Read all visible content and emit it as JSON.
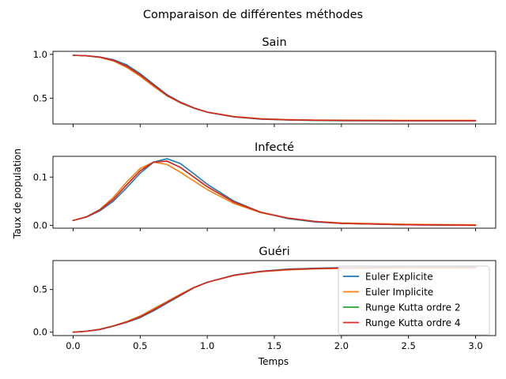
{
  "suptitle": "Comparaison de différentes méthodes",
  "ylabel": "Taux de population",
  "xlabel": "Temps",
  "legend": {
    "placement": "lower-right of bottom panel",
    "entries": [
      "Euler Explicite",
      "Euler Implicite",
      "Runge Kutta ordre 2",
      "Runge Kutta ordre 4"
    ]
  },
  "colors": {
    "Euler Explicite": "#1f77b4",
    "Euler Implicite": "#ff7f0e",
    "Runge Kutta ordre 2": "#2ca02c",
    "Runge Kutta ordre 4": "#d62728"
  },
  "x_ticks": [
    "0.0",
    "0.5",
    "1.0",
    "1.5",
    "2.0",
    "2.5",
    "3.0"
  ],
  "chart_data": [
    {
      "type": "line",
      "title": "Sain",
      "xlim": [
        -0.15,
        3.15
      ],
      "ylim": [
        0.205,
        1.035
      ],
      "yticks": [
        0.5,
        1.0
      ],
      "ytick_labels": [
        "0.5",
        "1.0"
      ],
      "x": [
        0,
        0.1,
        0.2,
        0.3,
        0.4,
        0.5,
        0.6,
        0.7,
        0.8,
        0.9,
        1.0,
        1.2,
        1.4,
        1.6,
        1.8,
        2.0,
        2.5,
        3.0
      ],
      "series": [
        {
          "name": "Euler Explicite",
          "values": [
            0.99,
            0.985,
            0.97,
            0.94,
            0.88,
            0.78,
            0.66,
            0.54,
            0.455,
            0.39,
            0.34,
            0.285,
            0.26,
            0.25,
            0.245,
            0.242,
            0.24,
            0.24
          ]
        },
        {
          "name": "Euler Implicite",
          "values": [
            0.99,
            0.983,
            0.965,
            0.925,
            0.85,
            0.75,
            0.635,
            0.525,
            0.445,
            0.385,
            0.34,
            0.29,
            0.265,
            0.255,
            0.25,
            0.248,
            0.246,
            0.246
          ]
        },
        {
          "name": "Runge Kutta ordre 2",
          "values": [
            0.99,
            0.984,
            0.968,
            0.932,
            0.865,
            0.765,
            0.648,
            0.532,
            0.45,
            0.387,
            0.34,
            0.287,
            0.262,
            0.252,
            0.247,
            0.245,
            0.243,
            0.243
          ]
        },
        {
          "name": "Runge Kutta ordre 4",
          "values": [
            0.99,
            0.984,
            0.968,
            0.932,
            0.865,
            0.765,
            0.648,
            0.532,
            0.45,
            0.387,
            0.34,
            0.287,
            0.262,
            0.252,
            0.247,
            0.245,
            0.243,
            0.243
          ]
        }
      ]
    },
    {
      "type": "line",
      "title": "Infecté",
      "xlim": [
        -0.15,
        3.15
      ],
      "ylim": [
        -0.006,
        0.143
      ],
      "yticks": [
        0.0,
        0.1
      ],
      "ytick_labels": [
        "0.0",
        "0.1"
      ],
      "x": [
        0,
        0.1,
        0.2,
        0.3,
        0.4,
        0.5,
        0.6,
        0.7,
        0.8,
        0.9,
        1.0,
        1.2,
        1.4,
        1.6,
        1.8,
        2.0,
        2.5,
        3.0
      ],
      "series": [
        {
          "name": "Euler Explicite",
          "values": [
            0.01,
            0.017,
            0.03,
            0.05,
            0.078,
            0.108,
            0.131,
            0.138,
            0.128,
            0.107,
            0.085,
            0.05,
            0.027,
            0.014,
            0.007,
            0.004,
            0.001,
            0.0
          ]
        },
        {
          "name": "Euler Implicite",
          "values": [
            0.01,
            0.018,
            0.033,
            0.058,
            0.09,
            0.118,
            0.131,
            0.126,
            0.11,
            0.092,
            0.074,
            0.045,
            0.026,
            0.015,
            0.008,
            0.005,
            0.002,
            0.001
          ]
        },
        {
          "name": "Runge Kutta ordre 2",
          "values": [
            0.01,
            0.0175,
            0.032,
            0.054,
            0.084,
            0.113,
            0.131,
            0.133,
            0.12,
            0.1,
            0.08,
            0.048,
            0.027,
            0.015,
            0.008,
            0.004,
            0.001,
            0.0
          ]
        },
        {
          "name": "Runge Kutta ordre 4",
          "values": [
            0.01,
            0.0175,
            0.032,
            0.054,
            0.084,
            0.113,
            0.131,
            0.133,
            0.12,
            0.1,
            0.08,
            0.048,
            0.027,
            0.015,
            0.008,
            0.004,
            0.001,
            0.0
          ]
        }
      ]
    },
    {
      "type": "line",
      "title": "Guéri",
      "xlim": [
        -0.15,
        3.15
      ],
      "ylim": [
        -0.04,
        0.84
      ],
      "yticks": [
        0.0,
        0.5
      ],
      "ytick_labels": [
        "0.0",
        "0.5"
      ],
      "x": [
        0,
        0.1,
        0.2,
        0.3,
        0.4,
        0.5,
        0.6,
        0.7,
        0.8,
        0.9,
        1.0,
        1.2,
        1.4,
        1.6,
        1.8,
        2.0,
        2.5,
        3.0
      ],
      "series": [
        {
          "name": "Euler Explicite",
          "values": [
            0.0,
            0.01,
            0.03,
            0.07,
            0.115,
            0.17,
            0.25,
            0.34,
            0.43,
            0.52,
            0.585,
            0.67,
            0.715,
            0.74,
            0.75,
            0.757,
            0.76,
            0.762
          ]
        },
        {
          "name": "Euler Implicite",
          "values": [
            0.0,
            0.012,
            0.035,
            0.075,
            0.125,
            0.19,
            0.275,
            0.36,
            0.445,
            0.525,
            0.585,
            0.665,
            0.71,
            0.73,
            0.742,
            0.748,
            0.752,
            0.753
          ]
        },
        {
          "name": "Runge Kutta ordre 2",
          "values": [
            0.0,
            0.011,
            0.033,
            0.072,
            0.12,
            0.18,
            0.262,
            0.35,
            0.437,
            0.522,
            0.585,
            0.668,
            0.712,
            0.735,
            0.746,
            0.752,
            0.756,
            0.757
          ]
        },
        {
          "name": "Runge Kutta ordre 4",
          "values": [
            0.0,
            0.011,
            0.033,
            0.072,
            0.12,
            0.18,
            0.262,
            0.35,
            0.437,
            0.522,
            0.585,
            0.668,
            0.712,
            0.735,
            0.746,
            0.752,
            0.756,
            0.757
          ]
        }
      ]
    }
  ]
}
